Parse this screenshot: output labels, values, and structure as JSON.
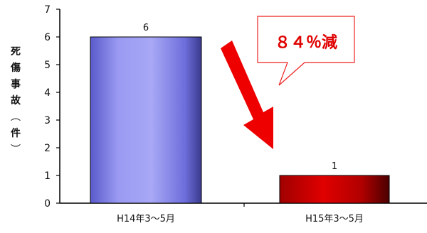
{
  "chart_data": {
    "type": "bar",
    "categories": [
      "H14年3～5月",
      "H15年3～5月"
    ],
    "values": [
      6,
      1
    ],
    "data_labels": [
      "6",
      "1"
    ],
    "ylabel": "死傷事故（件）",
    "ylim": [
      0,
      7
    ],
    "yticks": [
      "0",
      "1",
      "2",
      "3",
      "4",
      "5",
      "6",
      "7"
    ],
    "grid": false,
    "bar_colors": [
      "#8f8fe8",
      "#c80000"
    ],
    "annotation": {
      "text": "８４％減",
      "color": "#e00000",
      "arrow_color": "#ee0000"
    }
  }
}
